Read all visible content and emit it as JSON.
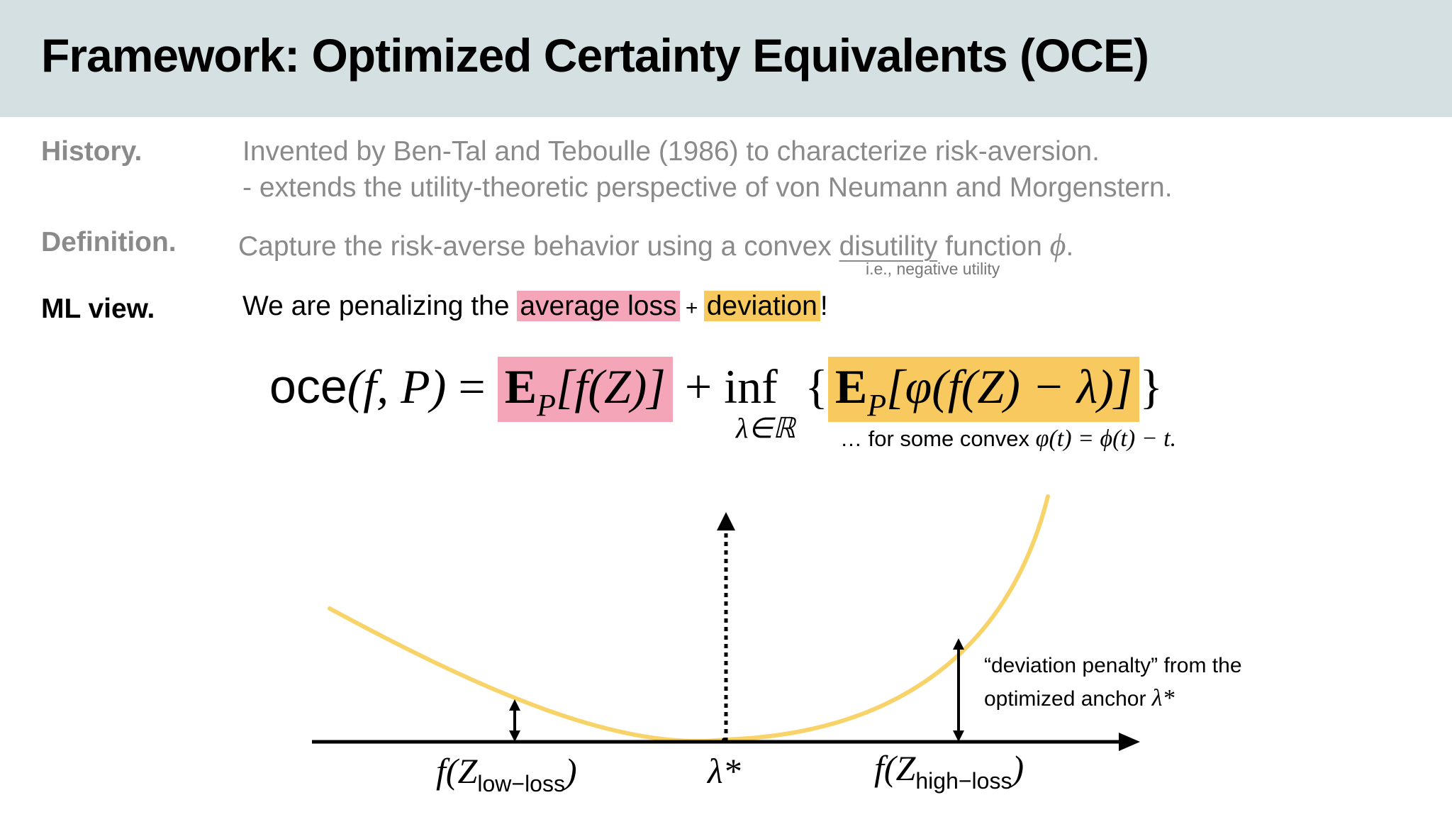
{
  "header": {
    "title": "Framework: Optimized Certainty Equivalents (OCE)"
  },
  "history": {
    "label": "History.",
    "line1": "Invented by Ben-Tal and Teboulle (1986) to characterize risk-aversion.",
    "line2": "- extends the utility-theoretic perspective of von Neumann and Morgenstern."
  },
  "definition": {
    "label": "Definition.",
    "text_before": "Capture the risk-averse behavior using a convex ",
    "underlined": "disutility",
    "text_after": " function ",
    "symbol": "ϕ",
    "period": ".",
    "note": "i.e., negative utility"
  },
  "ml_view": {
    "label": "ML view.",
    "text_before": "We are penalizing the ",
    "highlight1": "average loss",
    "plus": " + ",
    "highlight2": "deviation",
    "exclaim": "!"
  },
  "formula": {
    "lhs_name": "oce",
    "lhs_args": "(f, P)",
    "equals": " = ",
    "term1": "E",
    "term1_sub": "P",
    "term1_rest": "[f(Z)]",
    "plus": " + ",
    "inf": "inf",
    "inf_sub": "λ∈ℝ",
    "brace_open": "{",
    "term2": "E",
    "term2_sub": "P",
    "term2_rest": "[φ(f(Z) − λ)]",
    "brace_close": "}",
    "note_prefix": "… for some convex ",
    "note_math": "φ(t) = ϕ(t) − t."
  },
  "diagram": {
    "low_label_main": "f(Z",
    "low_label_sub": "low−loss",
    "low_label_close": ")",
    "lambda_label": "λ*",
    "high_label_main": "f(Z",
    "high_label_sub": "high−loss",
    "high_label_close": ")",
    "annotation_line1": "“deviation penalty” from the",
    "annotation_line2_text": "optimized anchor ",
    "annotation_line2_math": "λ*",
    "curve_color": "#f7d36a"
  },
  "colors": {
    "pink": "#f4a5b7",
    "yellow": "#f7c95e",
    "header_bg": "#d5e0e2",
    "gray_text": "#8a8a8a"
  }
}
